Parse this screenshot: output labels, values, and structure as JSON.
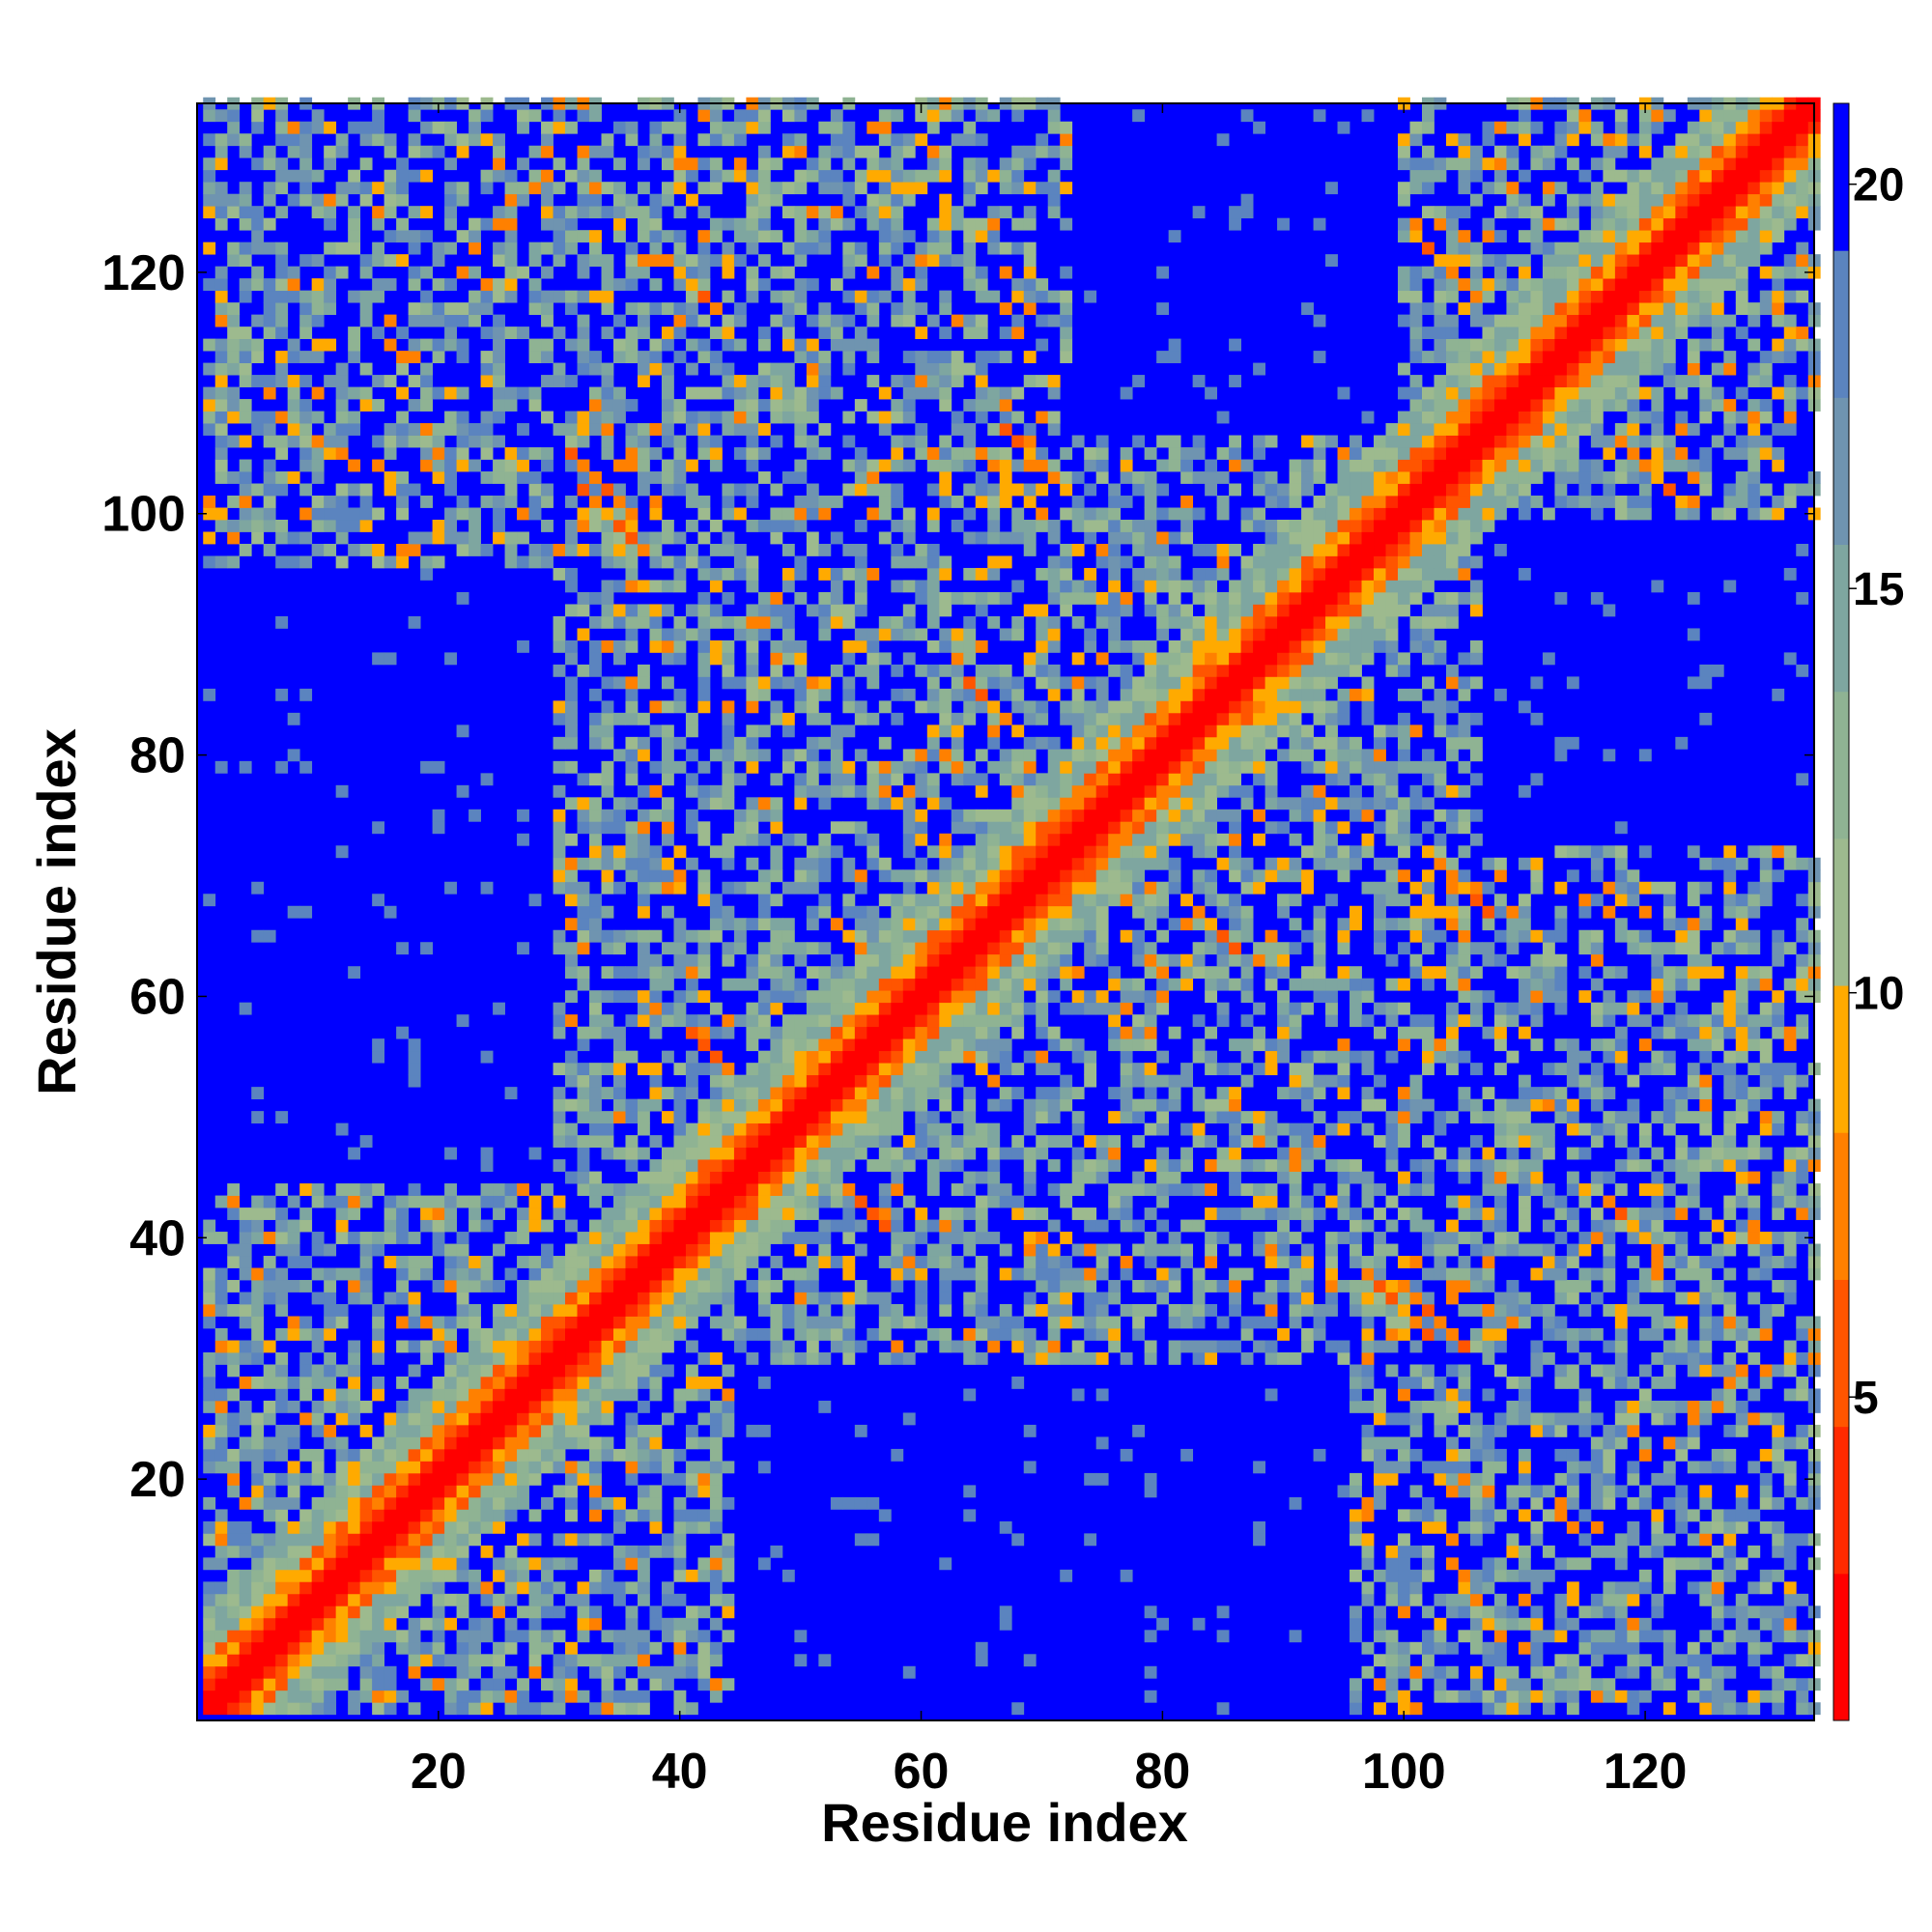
{
  "chart_data": {
    "type": "heatmap",
    "title": "",
    "xlabel": "Residue index",
    "ylabel": "Residue index",
    "xlim": [
      1,
      134
    ],
    "ylim": [
      1,
      134
    ],
    "x_ticks": [
      20,
      40,
      60,
      80,
      100,
      120
    ],
    "y_ticks": [
      20,
      40,
      60,
      80,
      100,
      120
    ],
    "n_residues": 134,
    "colorbar": {
      "range": [
        1,
        21
      ],
      "ticks": [
        5,
        10,
        15,
        20
      ],
      "colors": [
        "#ff0000",
        "#ff2a00",
        "#ff5500",
        "#ff8000",
        "#ffaa00",
        "#9dba8e",
        "#8fb393",
        "#7ea6a0",
        "#6f94b0",
        "#5b84bf",
        "#0000ff"
      ]
    },
    "structure_features": {
      "diagonal_band_width": 2,
      "long_range_contact_lines": [
        {
          "i_start": 32,
          "j_start": 102,
          "length": 6
        },
        {
          "i_start": 66,
          "j_start": 104,
          "length": 5
        },
        {
          "i_start": 100,
          "j_start": 36,
          "length": 6
        },
        {
          "i_start": 102,
          "j_start": 72,
          "length": 6
        },
        {
          "i_start": 118,
          "j_start": 106,
          "length": 6
        },
        {
          "i_start": 40,
          "j_start": 120,
          "length": 4
        },
        {
          "i_start": 54,
          "j_start": 44,
          "length": 4
        },
        {
          "i_start": 82,
          "j_start": 68,
          "length": 5
        }
      ],
      "contact_regions": [
        {
          "i": [
            1,
            44
          ],
          "j": [
            1,
            44
          ]
        },
        {
          "i": [
            1,
            50
          ],
          "j": [
            96,
            134
          ]
        },
        {
          "i": [
            30,
            72
          ],
          "j": [
            36,
            110
          ]
        },
        {
          "i": [
            70,
            106
          ],
          "j": [
            64,
            104
          ]
        },
        {
          "i": [
            96,
            134
          ],
          "j": [
            1,
            72
          ]
        },
        {
          "i": [
            100,
            134
          ],
          "j": [
            100,
            134
          ]
        },
        {
          "i": [
            100,
            128
          ],
          "j": [
            24,
            70
          ]
        }
      ]
    }
  }
}
